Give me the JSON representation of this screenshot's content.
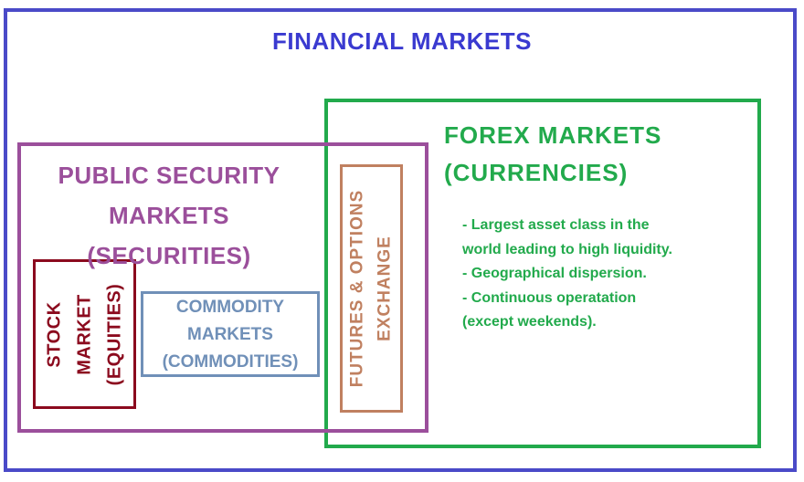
{
  "title": "FINANCIAL MARKETS",
  "forex": {
    "title_line1": "FOREX MARKETS",
    "title_line2": "(CURRENCIES)",
    "bullets": [
      "- Largest asset class in the",
      "world leading to high liquidity.",
      "- Geographical dispersion.",
      "- Continuous operatation",
      "(except weekends)."
    ]
  },
  "public_security": {
    "line1": "PUBLIC SECURITY",
    "line2": "MARKETS",
    "line3": "(SECURITIES)"
  },
  "stock": {
    "line1": "STOCK",
    "line2": "MARKET",
    "line3": "(EQUITIES)"
  },
  "commodity": {
    "line1": "COMMODITY",
    "line2": "MARKETS",
    "line3": "(COMMODITIES)"
  },
  "futures": {
    "line1": "FUTURES & OPTIONS",
    "line2": "EXCHANGE"
  },
  "colors": {
    "financial": "#4a4ac8",
    "forex": "#22aa4c",
    "public_security": "#9b4f9b",
    "futures": "#c08060",
    "stock": "#8b0a1e",
    "commodity": "#7090b8"
  }
}
